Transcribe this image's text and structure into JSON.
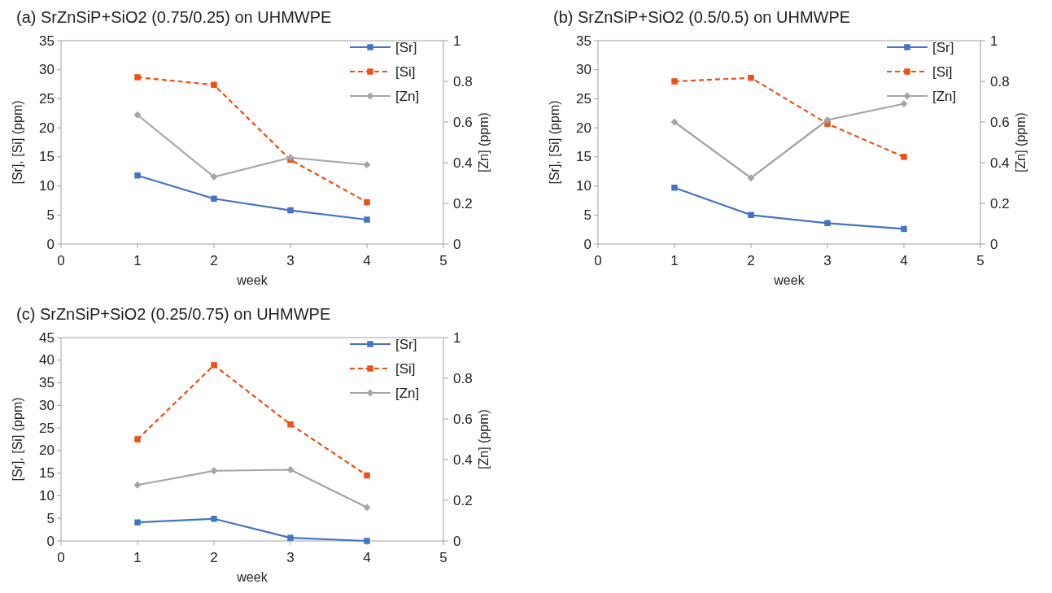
{
  "chart_data": [
    {
      "type": "line",
      "title": "(a)  SrZnSiP+SiO2 (0.75/0.25) on UHMWPE",
      "xlabel": "week",
      "ylabel": "[Sr], [Si] (ppm)",
      "y2label": "[Zn] (ppm)",
      "x": [
        1,
        2,
        3,
        4
      ],
      "xlim": [
        0,
        5
      ],
      "xticks": [
        0,
        1,
        2,
        3,
        4,
        5
      ],
      "ylim": [
        0,
        35
      ],
      "yticks": [
        0,
        5,
        10,
        15,
        20,
        25,
        30,
        35
      ],
      "y2lim": [
        0,
        1
      ],
      "y2ticks": [
        0,
        0.2,
        0.4,
        0.6,
        0.8,
        1
      ],
      "grid": false,
      "legend": "top right",
      "series": [
        {
          "name": "[Sr]",
          "color": "#4472c4",
          "marker": "square",
          "line_style": "solid",
          "values": [
            11.8,
            7.8,
            5.8,
            4.2
          ]
        },
        {
          "name": "[Si]",
          "color": "#f04e12",
          "marker": "square",
          "line_style": "dashed",
          "values": [
            28.7,
            27.4,
            14.5,
            7.2
          ]
        },
        {
          "name": "[Zn]",
          "color": "#a5a5a5",
          "marker": "diamond",
          "line_style": "solid",
          "axis": "y2",
          "values": [
            0.635,
            0.33,
            0.425,
            0.39
          ]
        }
      ]
    },
    {
      "type": "line",
      "title": "(b)  SrZnSiP+SiO2 (0.5/0.5) on UHMWPE",
      "xlabel": "week",
      "ylabel": "[Sr], [Si] (ppm)",
      "y2label": "[Zn] (ppm)",
      "x": [
        1,
        2,
        3,
        4
      ],
      "xlim": [
        0,
        5
      ],
      "xticks": [
        0,
        1,
        2,
        3,
        4,
        5
      ],
      "ylim": [
        0,
        35
      ],
      "yticks": [
        0,
        5,
        10,
        15,
        20,
        25,
        30,
        35
      ],
      "y2lim": [
        0,
        1
      ],
      "y2ticks": [
        0,
        0.2,
        0.4,
        0.6,
        0.8,
        1
      ],
      "grid": false,
      "legend": "top right",
      "series": [
        {
          "name": "[Sr]",
          "color": "#4472c4",
          "marker": "square",
          "line_style": "solid",
          "values": [
            9.7,
            5,
            3.6,
            2.6
          ]
        },
        {
          "name": "[Si]",
          "color": "#f04e12",
          "marker": "square",
          "line_style": "dashed",
          "values": [
            28,
            28.6,
            20.7,
            15
          ]
        },
        {
          "name": "[Zn]",
          "color": "#a5a5a5",
          "marker": "diamond",
          "line_style": "solid",
          "axis": "y2",
          "values": [
            0.6,
            0.325,
            0.61,
            0.69
          ]
        }
      ]
    },
    {
      "type": "line",
      "title": "(c)  SrZnSiP+SiO2 (0.25/0.75) on UHMWPE",
      "xlabel": "week",
      "ylabel": "[Sr], [Si] (ppm)",
      "y2label": "[Zn] (ppm)",
      "x": [
        1,
        2,
        3,
        4
      ],
      "xlim": [
        0,
        5
      ],
      "xticks": [
        0,
        1,
        2,
        3,
        4,
        5
      ],
      "ylim": [
        0,
        45
      ],
      "yticks": [
        0,
        5,
        10,
        15,
        20,
        25,
        30,
        35,
        40,
        45
      ],
      "y2lim": [
        0,
        1
      ],
      "y2ticks": [
        0,
        0.2,
        0.4,
        0.6,
        0.8,
        1
      ],
      "grid": false,
      "legend": "top right",
      "series": [
        {
          "name": "[Sr]",
          "color": "#4472c4",
          "marker": "square",
          "line_style": "solid",
          "values": [
            4.1,
            4.9,
            0.7,
            0
          ]
        },
        {
          "name": "[Si]",
          "color": "#f04e12",
          "marker": "square",
          "line_style": "dashed",
          "values": [
            22.5,
            38.9,
            25.8,
            14.5
          ]
        },
        {
          "name": "[Zn]",
          "color": "#a5a5a5",
          "marker": "diamond",
          "line_style": "solid",
          "axis": "y2",
          "values": [
            0.275,
            0.345,
            0.35,
            0.165
          ]
        }
      ]
    }
  ]
}
